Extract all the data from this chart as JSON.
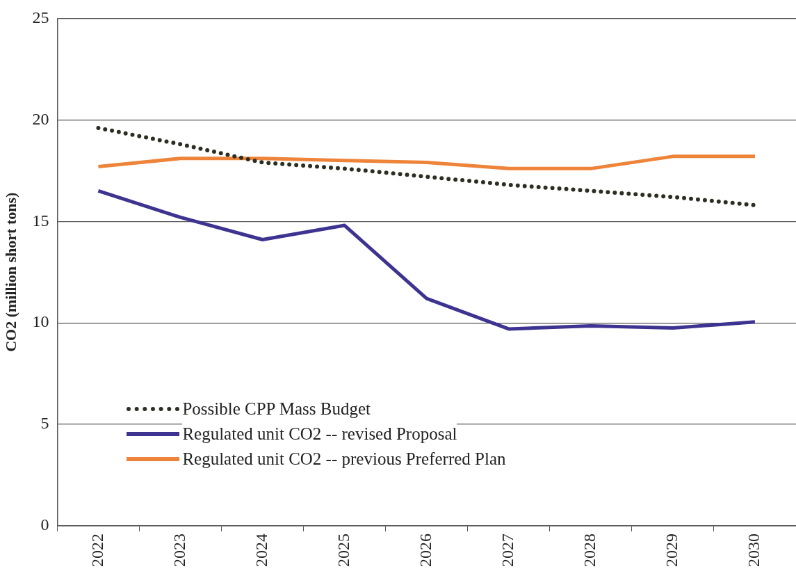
{
  "chart_data": {
    "type": "line",
    "ylabel": "CO2 (million short tons)",
    "categories": [
      "2022",
      "2023",
      "2024",
      "2025",
      "2026",
      "2027",
      "2028",
      "2029",
      "2030"
    ],
    "series": [
      {
        "name": "Possible CPP Mass Budget",
        "color": "#2b2f22",
        "line_style": "dotted",
        "values": [
          19.6,
          18.8,
          17.9,
          17.6,
          17.2,
          16.8,
          16.5,
          16.2,
          15.8
        ]
      },
      {
        "name": "Regulated unit CO2 -- revised Proposal",
        "color": "#3d3390",
        "line_style": "solid",
        "values": [
          16.5,
          15.2,
          14.1,
          14.8,
          11.2,
          9.7,
          9.85,
          9.75,
          10.05
        ]
      },
      {
        "name": "Regulated unit CO2 -- previous Preferred Plan",
        "color": "#ee843a",
        "line_style": "solid",
        "values": [
          17.7,
          18.1,
          18.1,
          18.0,
          17.9,
          17.6,
          17.6,
          18.2,
          18.2
        ]
      }
    ],
    "ylim": [
      0,
      25
    ],
    "yticks": [
      0,
      5,
      10,
      15,
      20,
      25
    ],
    "grid": "y",
    "legend": "bottom left",
    "marker": "none"
  }
}
